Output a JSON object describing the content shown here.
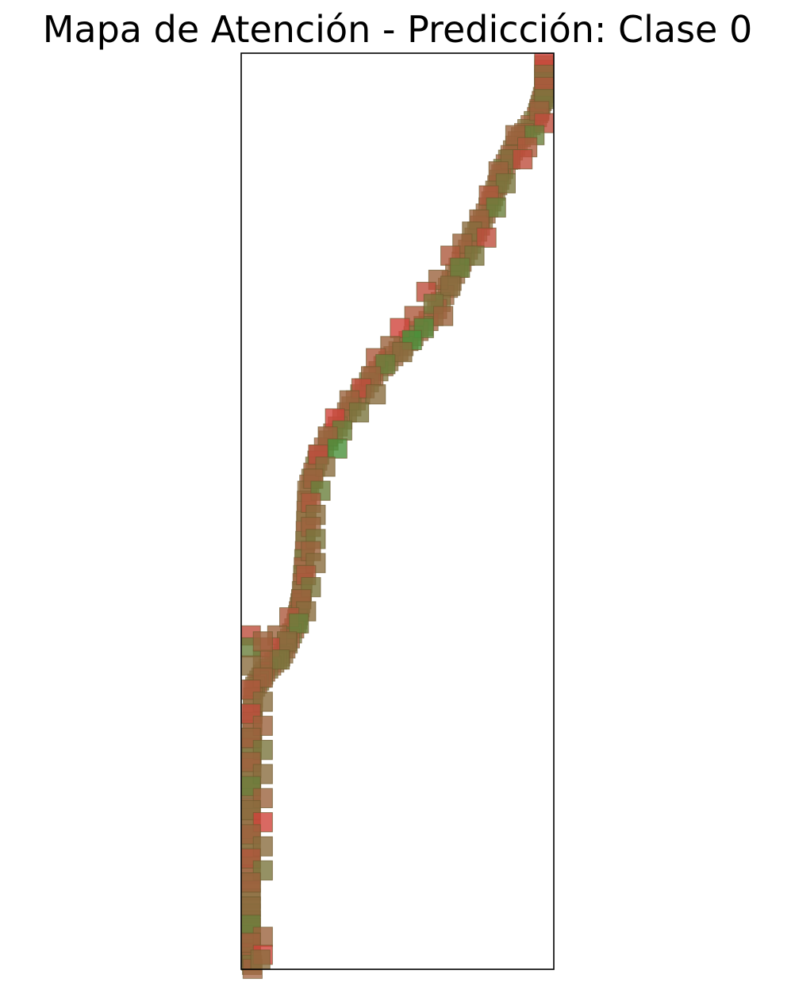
{
  "chart_data": {
    "type": "heatmap",
    "title": "Mapa de Atención - Predicción: Clase 0",
    "xlabel": "",
    "ylabel": "",
    "axes_ticks": false,
    "grid": false,
    "colors": {
      "high": "#e03a3a",
      "low": "#3a9a3a",
      "mid": "#8a6d3e",
      "frame": "#000000"
    },
    "x_range": [
      0,
      26
    ],
    "y_range": [
      0,
      76
    ],
    "patch_size": 2,
    "path": [
      [
        25.5,
        0.2
      ],
      [
        25.2,
        2.5
      ],
      [
        24.6,
        4.5
      ],
      [
        23.0,
        6.5
      ],
      [
        21.8,
        8.8
      ],
      [
        20.8,
        11.5
      ],
      [
        19.4,
        14.5
      ],
      [
        17.8,
        17.5
      ],
      [
        16.0,
        21.0
      ],
      [
        13.5,
        23.5
      ],
      [
        11.0,
        26.0
      ],
      [
        8.8,
        29.0
      ],
      [
        6.5,
        32.5
      ],
      [
        5.5,
        35.5
      ],
      [
        5.3,
        40.5
      ],
      [
        5.0,
        44.5
      ],
      [
        4.6,
        46.5
      ],
      [
        3.5,
        49.0
      ],
      [
        2.0,
        50.5
      ],
      [
        1.0,
        52.0
      ],
      [
        0.9,
        56.0
      ],
      [
        0.8,
        61.0
      ],
      [
        0.7,
        66.0
      ],
      [
        0.6,
        70.0
      ],
      [
        0.7,
        73.5
      ],
      [
        1.0,
        75.5
      ]
    ],
    "cells": [
      {
        "x": 25.4,
        "y": 0.0,
        "v": 0.9
      },
      {
        "x": 25.4,
        "y": 1.0,
        "v": 0.5
      },
      {
        "x": 24.6,
        "y": 2.0,
        "v": 0.7
      },
      {
        "x": 25.2,
        "y": 3.0,
        "v": 0.4
      },
      {
        "x": 24.0,
        "y": 4.0,
        "v": 0.6
      },
      {
        "x": 24.8,
        "y": 5.0,
        "v": 0.8
      },
      {
        "x": 23.6,
        "y": 6.0,
        "v": 0.3
      },
      {
        "x": 22.0,
        "y": 6.0,
        "v": 0.6
      },
      {
        "x": 23.0,
        "y": 7.0,
        "v": 0.7
      },
      {
        "x": 21.6,
        "y": 8.0,
        "v": 0.5
      },
      {
        "x": 22.6,
        "y": 8.0,
        "v": 0.8
      },
      {
        "x": 20.6,
        "y": 9.0,
        "v": 0.6
      },
      {
        "x": 21.2,
        "y": 10.0,
        "v": 0.4
      },
      {
        "x": 19.8,
        "y": 11.0,
        "v": 0.7
      },
      {
        "x": 20.4,
        "y": 12.0,
        "v": 0.3
      },
      {
        "x": 19.0,
        "y": 13.0,
        "v": 0.6
      },
      {
        "x": 18.4,
        "y": 14.0,
        "v": 0.5
      },
      {
        "x": 19.6,
        "y": 14.5,
        "v": 0.8
      },
      {
        "x": 17.6,
        "y": 15.0,
        "v": 0.6
      },
      {
        "x": 18.6,
        "y": 16.0,
        "v": 0.4
      },
      {
        "x": 16.6,
        "y": 16.0,
        "v": 0.7
      },
      {
        "x": 17.4,
        "y": 17.0,
        "v": 0.3
      },
      {
        "x": 15.6,
        "y": 18.0,
        "v": 0.6
      },
      {
        "x": 16.6,
        "y": 18.5,
        "v": 0.5
      },
      {
        "x": 14.6,
        "y": 19.0,
        "v": 0.8
      },
      {
        "x": 15.2,
        "y": 20.0,
        "v": 0.4
      },
      {
        "x": 16.0,
        "y": 21.0,
        "v": 0.6
      },
      {
        "x": 13.6,
        "y": 21.0,
        "v": 0.7
      },
      {
        "x": 14.4,
        "y": 22.0,
        "v": 0.2
      },
      {
        "x": 12.4,
        "y": 22.0,
        "v": 0.9
      },
      {
        "x": 13.4,
        "y": 23.0,
        "v": 0.1
      },
      {
        "x": 11.6,
        "y": 23.5,
        "v": 0.6
      },
      {
        "x": 12.6,
        "y": 24.0,
        "v": 0.5
      },
      {
        "x": 10.4,
        "y": 24.5,
        "v": 0.7
      },
      {
        "x": 11.2,
        "y": 25.0,
        "v": 0.3
      },
      {
        "x": 10.0,
        "y": 26.0,
        "v": 0.6
      },
      {
        "x": 9.2,
        "y": 27.0,
        "v": 0.8
      },
      {
        "x": 10.4,
        "y": 27.5,
        "v": 0.5
      },
      {
        "x": 8.2,
        "y": 28.0,
        "v": 0.6
      },
      {
        "x": 9.0,
        "y": 29.0,
        "v": 0.4
      },
      {
        "x": 7.0,
        "y": 29.5,
        "v": 0.9
      },
      {
        "x": 7.6,
        "y": 30.5,
        "v": 0.3
      },
      {
        "x": 6.4,
        "y": 31.0,
        "v": 0.6
      },
      {
        "x": 7.2,
        "y": 32.0,
        "v": 0.1
      },
      {
        "x": 5.6,
        "y": 32.5,
        "v": 0.8
      },
      {
        "x": 6.2,
        "y": 33.5,
        "v": 0.5
      },
      {
        "x": 5.2,
        "y": 34.5,
        "v": 0.6
      },
      {
        "x": 5.8,
        "y": 35.5,
        "v": 0.3
      },
      {
        "x": 5.0,
        "y": 36.5,
        "v": 0.7
      },
      {
        "x": 5.4,
        "y": 37.5,
        "v": 0.5
      },
      {
        "x": 5.0,
        "y": 38.5,
        "v": 0.6
      },
      {
        "x": 5.4,
        "y": 39.5,
        "v": 0.4
      },
      {
        "x": 5.0,
        "y": 40.5,
        "v": 0.6
      },
      {
        "x": 5.4,
        "y": 41.5,
        "v": 0.5
      },
      {
        "x": 4.6,
        "y": 42.5,
        "v": 0.7
      },
      {
        "x": 5.0,
        "y": 43.5,
        "v": 0.4
      },
      {
        "x": 4.2,
        "y": 44.5,
        "v": 0.6
      },
      {
        "x": 4.6,
        "y": 45.5,
        "v": 0.5
      },
      {
        "x": 3.2,
        "y": 46.0,
        "v": 0.7
      },
      {
        "x": 4.0,
        "y": 46.5,
        "v": 0.3
      },
      {
        "x": 2.2,
        "y": 47.5,
        "v": 0.6
      },
      {
        "x": 3.0,
        "y": 48.0,
        "v": 0.5
      },
      {
        "x": 1.6,
        "y": 48.5,
        "v": 0.8
      },
      {
        "x": 2.4,
        "y": 49.5,
        "v": 0.4
      },
      {
        "x": 1.0,
        "y": 49.5,
        "v": 0.6
      },
      {
        "x": 0.0,
        "y": 47.5,
        "v": 0.8
      },
      {
        "x": 0.0,
        "y": 48.5,
        "v": 0.3
      },
      {
        "x": 1.0,
        "y": 48.0,
        "v": 0.6
      },
      {
        "x": 0.0,
        "y": 50.0,
        "v": 0.5
      },
      {
        "x": 1.0,
        "y": 51.0,
        "v": 0.6
      },
      {
        "x": 0.0,
        "y": 52.0,
        "v": 0.7
      },
      {
        "x": 1.0,
        "y": 53.0,
        "v": 0.5
      },
      {
        "x": 0.0,
        "y": 54.0,
        "v": 0.8
      },
      {
        "x": 1.0,
        "y": 55.0,
        "v": 0.6
      },
      {
        "x": 0.0,
        "y": 56.0,
        "v": 0.6
      },
      {
        "x": 1.0,
        "y": 57.0,
        "v": 0.4
      },
      {
        "x": 0.0,
        "y": 58.0,
        "v": 0.6
      },
      {
        "x": 1.0,
        "y": 59.0,
        "v": 0.5
      },
      {
        "x": 0.0,
        "y": 60.0,
        "v": 0.3
      },
      {
        "x": 1.0,
        "y": 61.0,
        "v": 0.6
      },
      {
        "x": 0.0,
        "y": 62.0,
        "v": 0.5
      },
      {
        "x": 1.0,
        "y": 63.0,
        "v": 0.9
      },
      {
        "x": 0.0,
        "y": 64.0,
        "v": 0.6
      },
      {
        "x": 1.0,
        "y": 65.0,
        "v": 0.5
      },
      {
        "x": 0.0,
        "y": 66.0,
        "v": 0.7
      },
      {
        "x": 1.0,
        "y": 67.0,
        "v": 0.4
      },
      {
        "x": 0.0,
        "y": 68.0,
        "v": 0.6
      },
      {
        "x": 0.0,
        "y": 70.0,
        "v": 0.5
      },
      {
        "x": 0.0,
        "y": 71.5,
        "v": 0.3
      },
      {
        "x": 1.0,
        "y": 72.5,
        "v": 0.6
      },
      {
        "x": 0.0,
        "y": 73.0,
        "v": 0.6
      },
      {
        "x": 1.0,
        "y": 74.0,
        "v": 0.9
      },
      {
        "x": 0.8,
        "y": 75.0,
        "v": 0.5
      }
    ]
  }
}
